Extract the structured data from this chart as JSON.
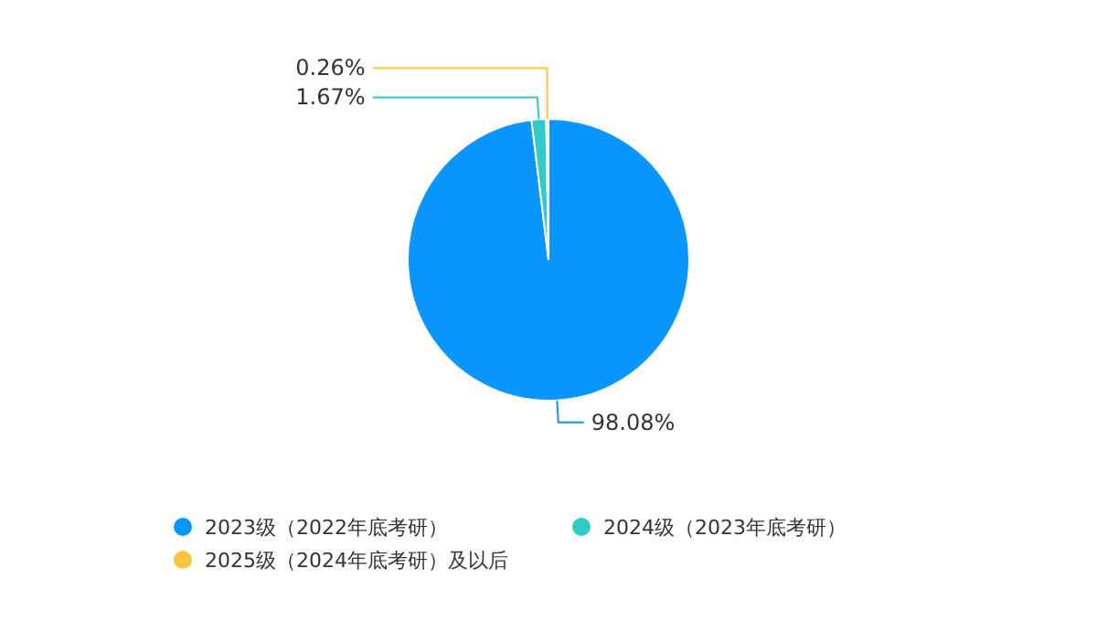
{
  "chart_data": {
    "type": "pie",
    "categories": [
      "2023级（2022年底考研）",
      "2024级（2023年底考研）",
      "2025级（2024年底考研）及以后"
    ],
    "values": [
      98.08,
      1.67,
      0.26
    ],
    "colors": [
      "#0a95ff",
      "#2fcbc4",
      "#fcc43d"
    ],
    "value_labels": [
      "98.08%",
      "1.67%",
      "0.26%"
    ],
    "legend": "bottom"
  }
}
